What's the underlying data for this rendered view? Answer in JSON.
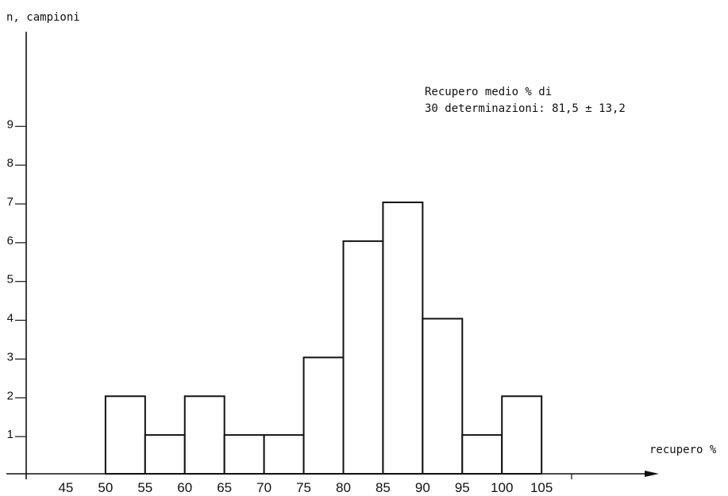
{
  "chart_data": {
    "type": "bar",
    "title": "",
    "ylabel": "n, campioni",
    "xlabel": "recupero %",
    "annotation": {
      "line1": "Recupero medio % di",
      "line2": "30 determinazioni: 81,5 ± 13,2"
    },
    "bin_width": 5,
    "bins": [
      {
        "start": 50,
        "end": 55,
        "value": 2
      },
      {
        "start": 55,
        "end": 60,
        "value": 1
      },
      {
        "start": 60,
        "end": 65,
        "value": 2
      },
      {
        "start": 65,
        "end": 70,
        "value": 1
      },
      {
        "start": 70,
        "end": 75,
        "value": 1
      },
      {
        "start": 75,
        "end": 80,
        "value": 3
      },
      {
        "start": 80,
        "end": 85,
        "value": 6
      },
      {
        "start": 85,
        "end": 90,
        "value": 7
      },
      {
        "start": 90,
        "end": 95,
        "value": 4
      },
      {
        "start": 95,
        "end": 100,
        "value": 1
      },
      {
        "start": 100,
        "end": 105,
        "value": 2
      }
    ],
    "x_ticks": [
      "45",
      "50",
      "55",
      "60",
      "65",
      "70",
      "75",
      "80",
      "85",
      "90",
      "95",
      "100",
      "105"
    ],
    "y_ticks": [
      "1",
      "2",
      "3",
      "4",
      "5",
      "6",
      "7",
      "8",
      "9"
    ],
    "xlim": [
      40,
      118
    ],
    "ylim": [
      0,
      11.4
    ],
    "grid": false,
    "legend": "none"
  }
}
